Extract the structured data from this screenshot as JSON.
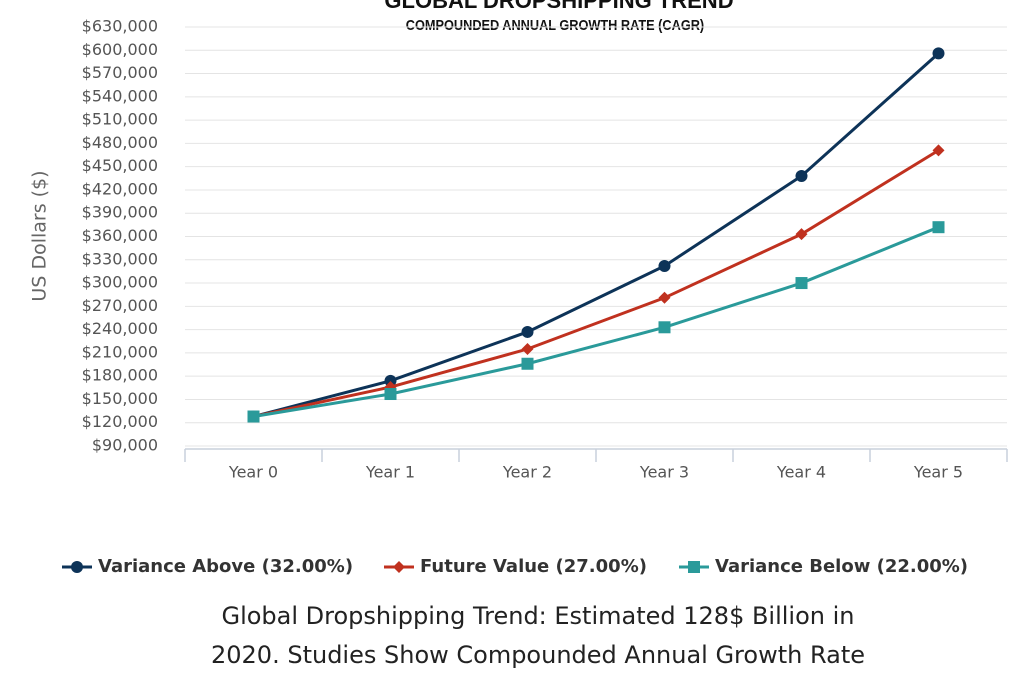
{
  "chart_data": {
    "type": "line",
    "title": "GLOBAL DROPSHIPPING TREND",
    "subtitle": "COMPOUNDED ANNUAL GROWTH RATE (CAGR)",
    "y_label": "US Dollars ($)",
    "categories": [
      "Year 0",
      "Year 1",
      "Year 2",
      "Year 3",
      "Year 4",
      "Year 5"
    ],
    "series": [
      {
        "name": "Variance Above (32.00%)",
        "color": "#0d3358",
        "marker": "circle",
        "values": [
          128000,
          174000,
          237000,
          322000,
          438000,
          596000
        ]
      },
      {
        "name": "Future Value (27.00%)",
        "color": "#c0311f",
        "marker": "diamond",
        "values": [
          128000,
          166000,
          215000,
          281000,
          363000,
          471000
        ]
      },
      {
        "name": "Variance Below (22.00%)",
        "color": "#2a9a9a",
        "marker": "square",
        "values": [
          128000,
          157000,
          196000,
          243000,
          300000,
          372000
        ]
      }
    ],
    "ylim": [
      90000,
      630000
    ],
    "yticks": [
      {
        "value": 90000,
        "label": "$90,000"
      },
      {
        "value": 120000,
        "label": "$120,000"
      },
      {
        "value": 150000,
        "label": "$150,000"
      },
      {
        "value": 180000,
        "label": "$180,000"
      },
      {
        "value": 210000,
        "label": "$210,000"
      },
      {
        "value": 240000,
        "label": "$240,000"
      },
      {
        "value": 270000,
        "label": "$270,000"
      },
      {
        "value": 300000,
        "label": "$300,000"
      },
      {
        "value": 330000,
        "label": "$330,000"
      },
      {
        "value": 360000,
        "label": "$360,000"
      },
      {
        "value": 390000,
        "label": "$390,000"
      },
      {
        "value": 420000,
        "label": "$420,000"
      },
      {
        "value": 450000,
        "label": "$450,000"
      },
      {
        "value": 480000,
        "label": "$480,000"
      },
      {
        "value": 510000,
        "label": "$510,000"
      },
      {
        "value": 540000,
        "label": "$540,000"
      },
      {
        "value": 570000,
        "label": "$570,000"
      },
      {
        "value": 600000,
        "label": "$600,000"
      },
      {
        "value": 630000,
        "label": "$630,000"
      }
    ],
    "grid": true,
    "legend": "bottom"
  },
  "caption": [
    "Global Dropshipping Trend: Estimated 128$ Billion in",
    "2020.  Studies Show Compounded Annual Growth Rate"
  ]
}
